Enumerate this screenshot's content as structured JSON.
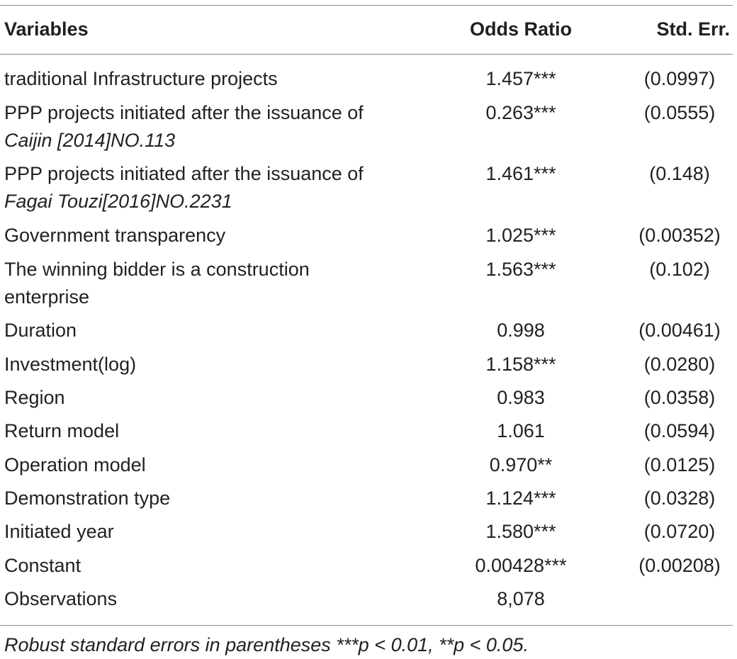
{
  "table": {
    "headers": [
      "Variables",
      "Odds Ratio",
      "Std. Err."
    ],
    "rows": [
      {
        "variable": "traditional Infrastructure projects",
        "variable_italic": "",
        "odds_ratio": "1.457***",
        "std_err": "(0.0997)"
      },
      {
        "variable": "PPP projects initiated after the issuance of",
        "variable_italic": "Caijin [2014]NO.113",
        "odds_ratio": "0.263***",
        "std_err": "(0.0555)"
      },
      {
        "variable": "PPP projects initiated after the issuance of",
        "variable_italic": "Fagai Touzi[2016]NO.2231",
        "odds_ratio": "1.461***",
        "std_err": "(0.148)"
      },
      {
        "variable": "Government transparency",
        "variable_italic": "",
        "odds_ratio": "1.025***",
        "std_err": "(0.00352)"
      },
      {
        "variable": "The winning bidder is a construction enterprise",
        "variable_italic": "",
        "odds_ratio": "1.563***",
        "std_err": "(0.102)"
      },
      {
        "variable": "Duration",
        "variable_italic": "",
        "odds_ratio": "0.998",
        "std_err": "(0.00461)"
      },
      {
        "variable": "Investment(log)",
        "variable_italic": "",
        "odds_ratio": "1.158***",
        "std_err": "(0.0280)"
      },
      {
        "variable": "Region",
        "variable_italic": "",
        "odds_ratio": "0.983",
        "std_err": "(0.0358)"
      },
      {
        "variable": "Return model",
        "variable_italic": "",
        "odds_ratio": "1.061",
        "std_err": "(0.0594)"
      },
      {
        "variable": "Operation model",
        "variable_italic": "",
        "odds_ratio": "0.970**",
        "std_err": "(0.0125)"
      },
      {
        "variable": "Demonstration type",
        "variable_italic": "",
        "odds_ratio": "1.124***",
        "std_err": "(0.0328)"
      },
      {
        "variable": "Initiated year",
        "variable_italic": "",
        "odds_ratio": "1.580***",
        "std_err": "(0.0720)"
      },
      {
        "variable": "Constant",
        "variable_italic": "",
        "odds_ratio": "0.00428***",
        "std_err": "(0.00208)"
      },
      {
        "variable": "Observations",
        "variable_italic": "",
        "odds_ratio": "8,078",
        "std_err": ""
      }
    ],
    "footnote": "Robust standard errors in parentheses ***p < 0.01, **p < 0.05."
  }
}
